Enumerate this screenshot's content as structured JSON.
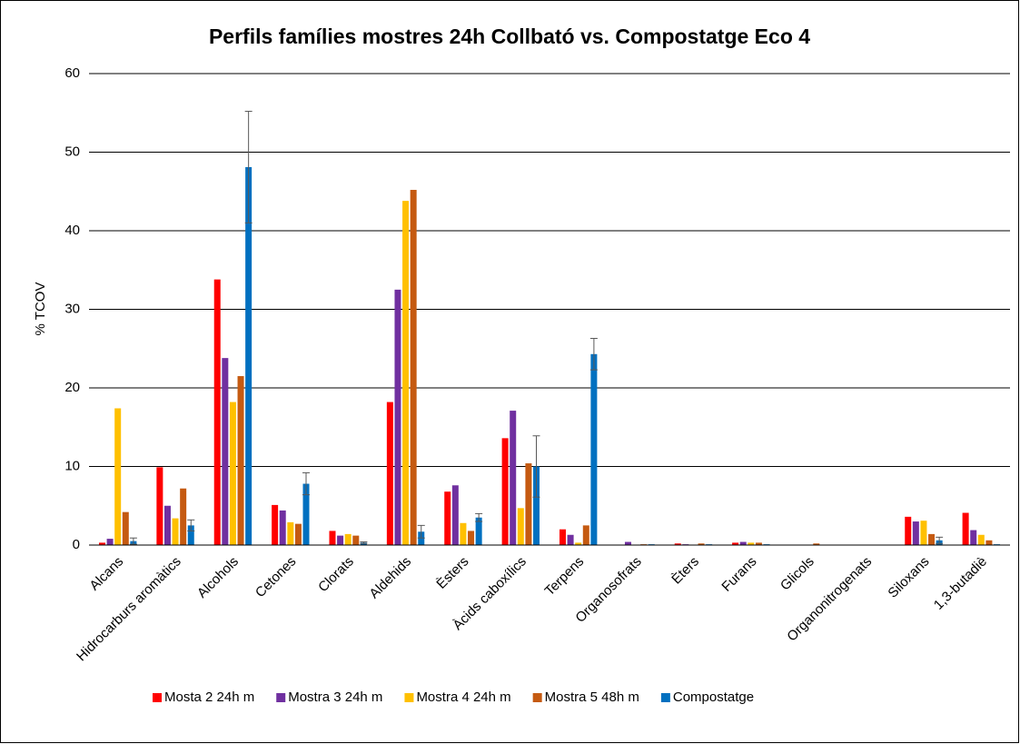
{
  "chart_data": {
    "type": "bar",
    "title": "Perfils famílies mostres 24h Collbató vs. Compostatge Eco 4",
    "y_label": "% TCOV",
    "categories": [
      "Alcans",
      "Hidrocarburs aromàtics",
      "Alcohols",
      "Cetones",
      "Clorats",
      "Aldehids",
      "Èsters",
      "Àcids caboxílics",
      "Terpens",
      "Organosofrats",
      "Èters",
      "Furans",
      "Glicols",
      "Organonitrogenats",
      "Siloxans",
      "1,3-butadiè"
    ],
    "series": [
      {
        "name": "Mosta 2 24h m",
        "color": "#ff0000",
        "values": [
          0.3,
          9.9,
          33.8,
          5.1,
          1.8,
          18.2,
          6.8,
          13.6,
          2.0,
          0,
          0.2,
          0.3,
          0,
          0,
          3.6,
          4.1
        ]
      },
      {
        "name": "Mostra 3 24h m",
        "color": "#7030a0",
        "values": [
          0.8,
          5.0,
          23.8,
          4.4,
          1.2,
          32.5,
          7.6,
          17.1,
          1.3,
          0.4,
          0.1,
          0.4,
          0,
          0,
          3.0,
          1.9
        ]
      },
      {
        "name": "Mostra 4 24h m",
        "color": "#ffc000",
        "values": [
          17.4,
          3.4,
          18.2,
          2.9,
          1.4,
          43.8,
          2.8,
          4.7,
          0.3,
          0.05,
          0,
          0.3,
          0,
          0,
          3.1,
          1.3
        ]
      },
      {
        "name": "Mostra 5 48h m",
        "color": "#c55a11",
        "values": [
          4.2,
          7.2,
          21.5,
          2.7,
          1.2,
          45.2,
          1.8,
          10.4,
          2.5,
          0.1,
          0.2,
          0.3,
          0.2,
          0,
          1.4,
          0.6
        ]
      },
      {
        "name": "Compostatge",
        "color": "#0070c0",
        "values": [
          0.5,
          2.5,
          48.1,
          7.8,
          0.3,
          1.7,
          3.5,
          10.0,
          24.3,
          0.1,
          0.1,
          0.1,
          0,
          0.05,
          0.6,
          0.1
        ],
        "errors": [
          0.4,
          0.7,
          7.1,
          1.4,
          0.1,
          0.8,
          0.5,
          3.9,
          2.0,
          0,
          0,
          0,
          0,
          0,
          0.4,
          0
        ]
      }
    ],
    "ylim": [
      0,
      60
    ],
    "yticks": [
      0,
      10,
      20,
      30,
      40,
      50,
      60
    ],
    "grid": true,
    "legend": "bottom"
  }
}
